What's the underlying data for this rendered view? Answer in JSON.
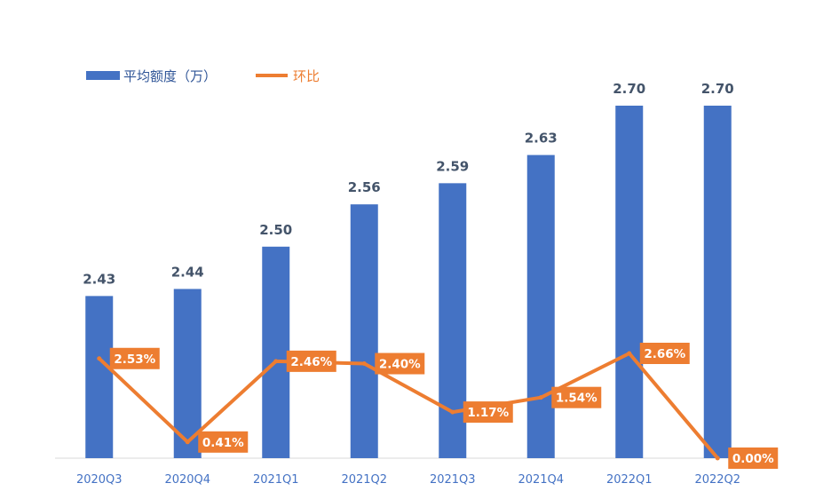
{
  "chart_data": {
    "type": "bar",
    "categories": [
      "2020Q3",
      "2020Q4",
      "2021Q1",
      "2021Q2",
      "2021Q3",
      "2021Q4",
      "2022Q1",
      "2022Q2"
    ],
    "series": [
      {
        "name": "平均额度（万）",
        "kind": "bar",
        "color": "#4472c4",
        "values": [
          2.43,
          2.44,
          2.5,
          2.56,
          2.59,
          2.63,
          2.7,
          2.7
        ],
        "labels": [
          "2.43",
          "2.44",
          "2.50",
          "2.56",
          "2.59",
          "2.63",
          "2.70",
          "2.70"
        ]
      },
      {
        "name": "环比",
        "kind": "line",
        "color": "#ed7d31",
        "values": [
          2.53,
          0.41,
          2.46,
          2.4,
          1.17,
          1.54,
          2.66,
          0.0
        ],
        "labels": [
          "2.53%",
          "0.41%",
          "2.46%",
          "2.40%",
          "1.17%",
          "1.54%",
          "2.66%",
          "0.00%"
        ]
      }
    ],
    "bar_ylim": [
      2.2,
      2.72
    ],
    "line_ylim": [
      0,
      3.0
    ],
    "legend_position": "top-left",
    "grid": false
  }
}
